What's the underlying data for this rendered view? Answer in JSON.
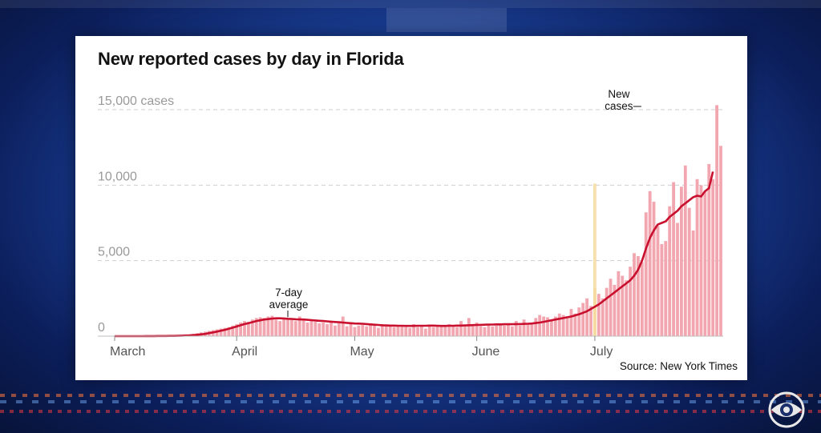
{
  "source": "Source: New York Times",
  "colors": {
    "bar": "#f2a7b0",
    "highlight_bar": "#f6d9a0",
    "average_line": "#c8102e",
    "grid": "#cfcfcf"
  },
  "network_logo": "cbs-eye-icon",
  "chart_data": {
    "type": "bar",
    "title": "New reported cases by day in Florida",
    "xlabel": "",
    "ylabel": "",
    "ylim": [
      0,
      15000
    ],
    "y_ticks": [
      {
        "value": 0,
        "label": "0"
      },
      {
        "value": 5000,
        "label": "5,000"
      },
      {
        "value": 10000,
        "label": "10,000"
      },
      {
        "value": 15000,
        "label": "15,000 cases"
      }
    ],
    "x_ticks": [
      {
        "date": "2020-03-01",
        "label": "March"
      },
      {
        "date": "2020-04-01",
        "label": "April"
      },
      {
        "date": "2020-05-01",
        "label": "May"
      },
      {
        "date": "2020-06-01",
        "label": "June"
      },
      {
        "date": "2020-07-01",
        "label": "July"
      }
    ],
    "grid": "horizontal dashed",
    "highlight_date": "2020-07-01",
    "annotations": [
      {
        "lines": [
          "7-day",
          "average"
        ],
        "date": "2020-04-14",
        "series": "7-day average"
      },
      {
        "lines": [
          "New",
          "cases"
        ],
        "date": "2020-07-12",
        "series": "New cases"
      }
    ],
    "series": [
      {
        "name": "New cases",
        "kind": "bar",
        "start_date": "2020-03-01",
        "values": [
          0,
          0,
          0,
          0,
          0,
          2,
          4,
          6,
          8,
          10,
          12,
          14,
          16,
          18,
          20,
          40,
          50,
          80,
          100,
          120,
          150,
          200,
          250,
          300,
          350,
          400,
          450,
          500,
          550,
          600,
          700,
          800,
          900,
          1000,
          950,
          1100,
          1200,
          1250,
          1200,
          1300,
          1350,
          1100,
          1000,
          1150,
          1200,
          1100,
          1000,
          1300,
          1050,
          900,
          1000,
          950,
          850,
          900,
          800,
          1000,
          700,
          850,
          1300,
          650,
          800,
          600,
          700,
          750,
          650,
          800,
          700,
          550,
          800,
          750,
          700,
          600,
          650,
          700,
          600,
          550,
          800,
          600,
          650,
          500,
          750,
          600,
          700,
          650,
          700,
          800,
          650,
          600,
          1000,
          700,
          1200,
          700,
          900,
          650,
          600,
          800,
          650,
          700,
          750,
          700,
          850,
          650,
          1000,
          700,
          1100,
          800,
          900,
          1200,
          1400,
          1300,
          1250,
          1100,
          1300,
          1500,
          1400,
          1250,
          1800,
          1500,
          1900,
          2200,
          2500,
          2000,
          3200,
          2800,
          2500,
          3200,
          3800,
          3400,
          4300,
          4000,
          3700,
          4600,
          5500,
          5300,
          4900,
          8200,
          9600,
          8900,
          7300,
          6100,
          6300,
          8600,
          10200,
          7500,
          9900,
          11300,
          8500,
          7000,
          10400,
          10000,
          9600,
          11400,
          10400,
          15300,
          12600
        ]
      },
      {
        "name": "7-day average",
        "kind": "line",
        "start_date": "2020-03-01",
        "values": [
          0,
          0,
          0,
          0,
          0,
          0,
          1,
          2,
          3,
          5,
          6,
          8,
          10,
          12,
          14,
          18,
          23,
          30,
          40,
          50,
          70,
          90,
          120,
          150,
          200,
          250,
          300,
          360,
          420,
          490,
          560,
          640,
          720,
          800,
          860,
          930,
          1000,
          1050,
          1100,
          1130,
          1160,
          1180,
          1180,
          1170,
          1150,
          1140,
          1120,
          1110,
          1100,
          1080,
          1060,
          1040,
          1020,
          1000,
          980,
          960,
          940,
          920,
          900,
          880,
          860,
          840,
          830,
          820,
          800,
          780,
          760,
          740,
          720,
          710,
          700,
          700,
          690,
          690,
          680,
          680,
          680,
          690,
          690,
          690,
          700,
          700,
          690,
          680,
          680,
          690,
          690,
          700,
          700,
          710,
          720,
          730,
          740,
          750,
          760,
          770,
          770,
          780,
          780,
          790,
          790,
          790,
          800,
          800,
          810,
          820,
          840,
          870,
          900,
          950,
          1000,
          1050,
          1100,
          1150,
          1200,
          1250,
          1300,
          1380,
          1450,
          1550,
          1650,
          1800,
          1950,
          2100,
          2300,
          2500,
          2700,
          2900,
          3100,
          3300,
          3500,
          3700,
          4000,
          4400,
          5000,
          5800,
          6500,
          7000,
          7400,
          7500,
          7600,
          7900,
          8100,
          8300,
          8600,
          8800,
          9000,
          9200,
          9300,
          9250,
          9600,
          9800,
          10900
        ]
      }
    ]
  }
}
